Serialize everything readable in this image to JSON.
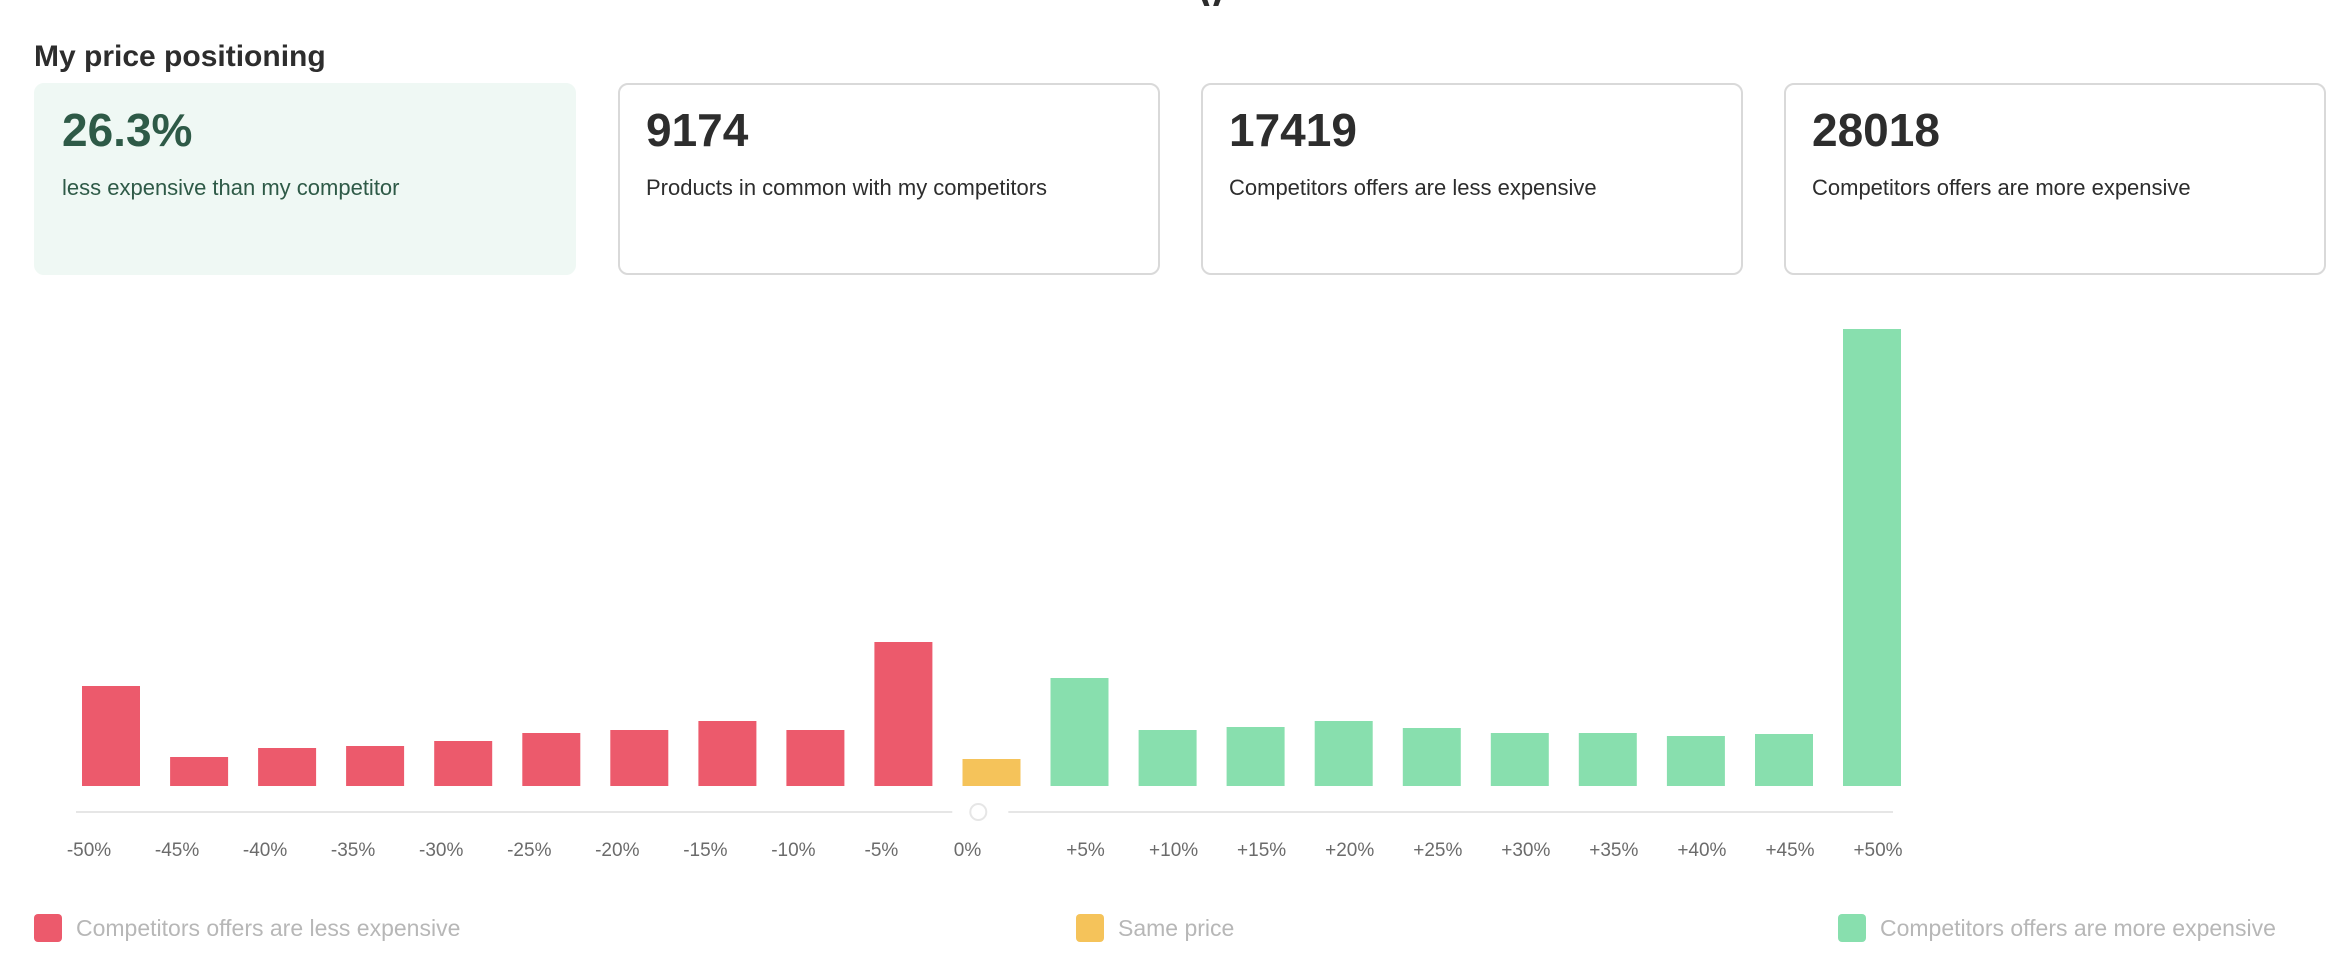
{
  "header": {
    "section_title": "My price positioning"
  },
  "cards": [
    {
      "value": "26.3%",
      "description": "less expensive than my competitor",
      "highlight": true
    },
    {
      "value": "9174",
      "description": "Products in common with my competitors",
      "highlight": false
    },
    {
      "value": "17419",
      "description": "Competitors offers are less expensive",
      "highlight": false
    },
    {
      "value": "28018",
      "description": "Competitors offers are more expensive",
      "highlight": false
    }
  ],
  "colors": {
    "less": "#ec5a6c",
    "same": "#f5c35a",
    "more": "#88dfae",
    "axis": "#e6e6e6",
    "tick_text": "#6b6b6b",
    "legend_text": "#b7b7b7",
    "highlight_bg": "#eff8f4",
    "highlight_text": "#2e5a47"
  },
  "chart_data": {
    "type": "bar",
    "categories": [
      "-50%",
      "-45%",
      "-40%",
      "-35%",
      "-30%",
      "-25%",
      "-20%",
      "-15%",
      "-10%",
      "-5%",
      "0%",
      "+5%",
      "+10%",
      "+15%",
      "+20%",
      "+25%",
      "+30%",
      "+35%",
      "+40%",
      "+45%",
      "+50%"
    ],
    "values": [
      100,
      29,
      38,
      40,
      45,
      53,
      56,
      65,
      56,
      144,
      27,
      108,
      56,
      59,
      65,
      58,
      53,
      53,
      50,
      52,
      457
    ],
    "value_unit": "relative bar height (no axis scale shown)",
    "groups": [
      "less",
      "less",
      "less",
      "less",
      "less",
      "less",
      "less",
      "less",
      "less",
      "less",
      "same",
      "more",
      "more",
      "more",
      "more",
      "more",
      "more",
      "more",
      "more",
      "more",
      "more"
    ],
    "legend": [
      {
        "key": "less",
        "label": "Competitors offers are less expensive"
      },
      {
        "key": "same",
        "label": "Same price"
      },
      {
        "key": "more",
        "label": "Competitors offers are more expensive"
      }
    ],
    "legend_position": "bottom",
    "grid": false,
    "y_axis_visible": false
  }
}
